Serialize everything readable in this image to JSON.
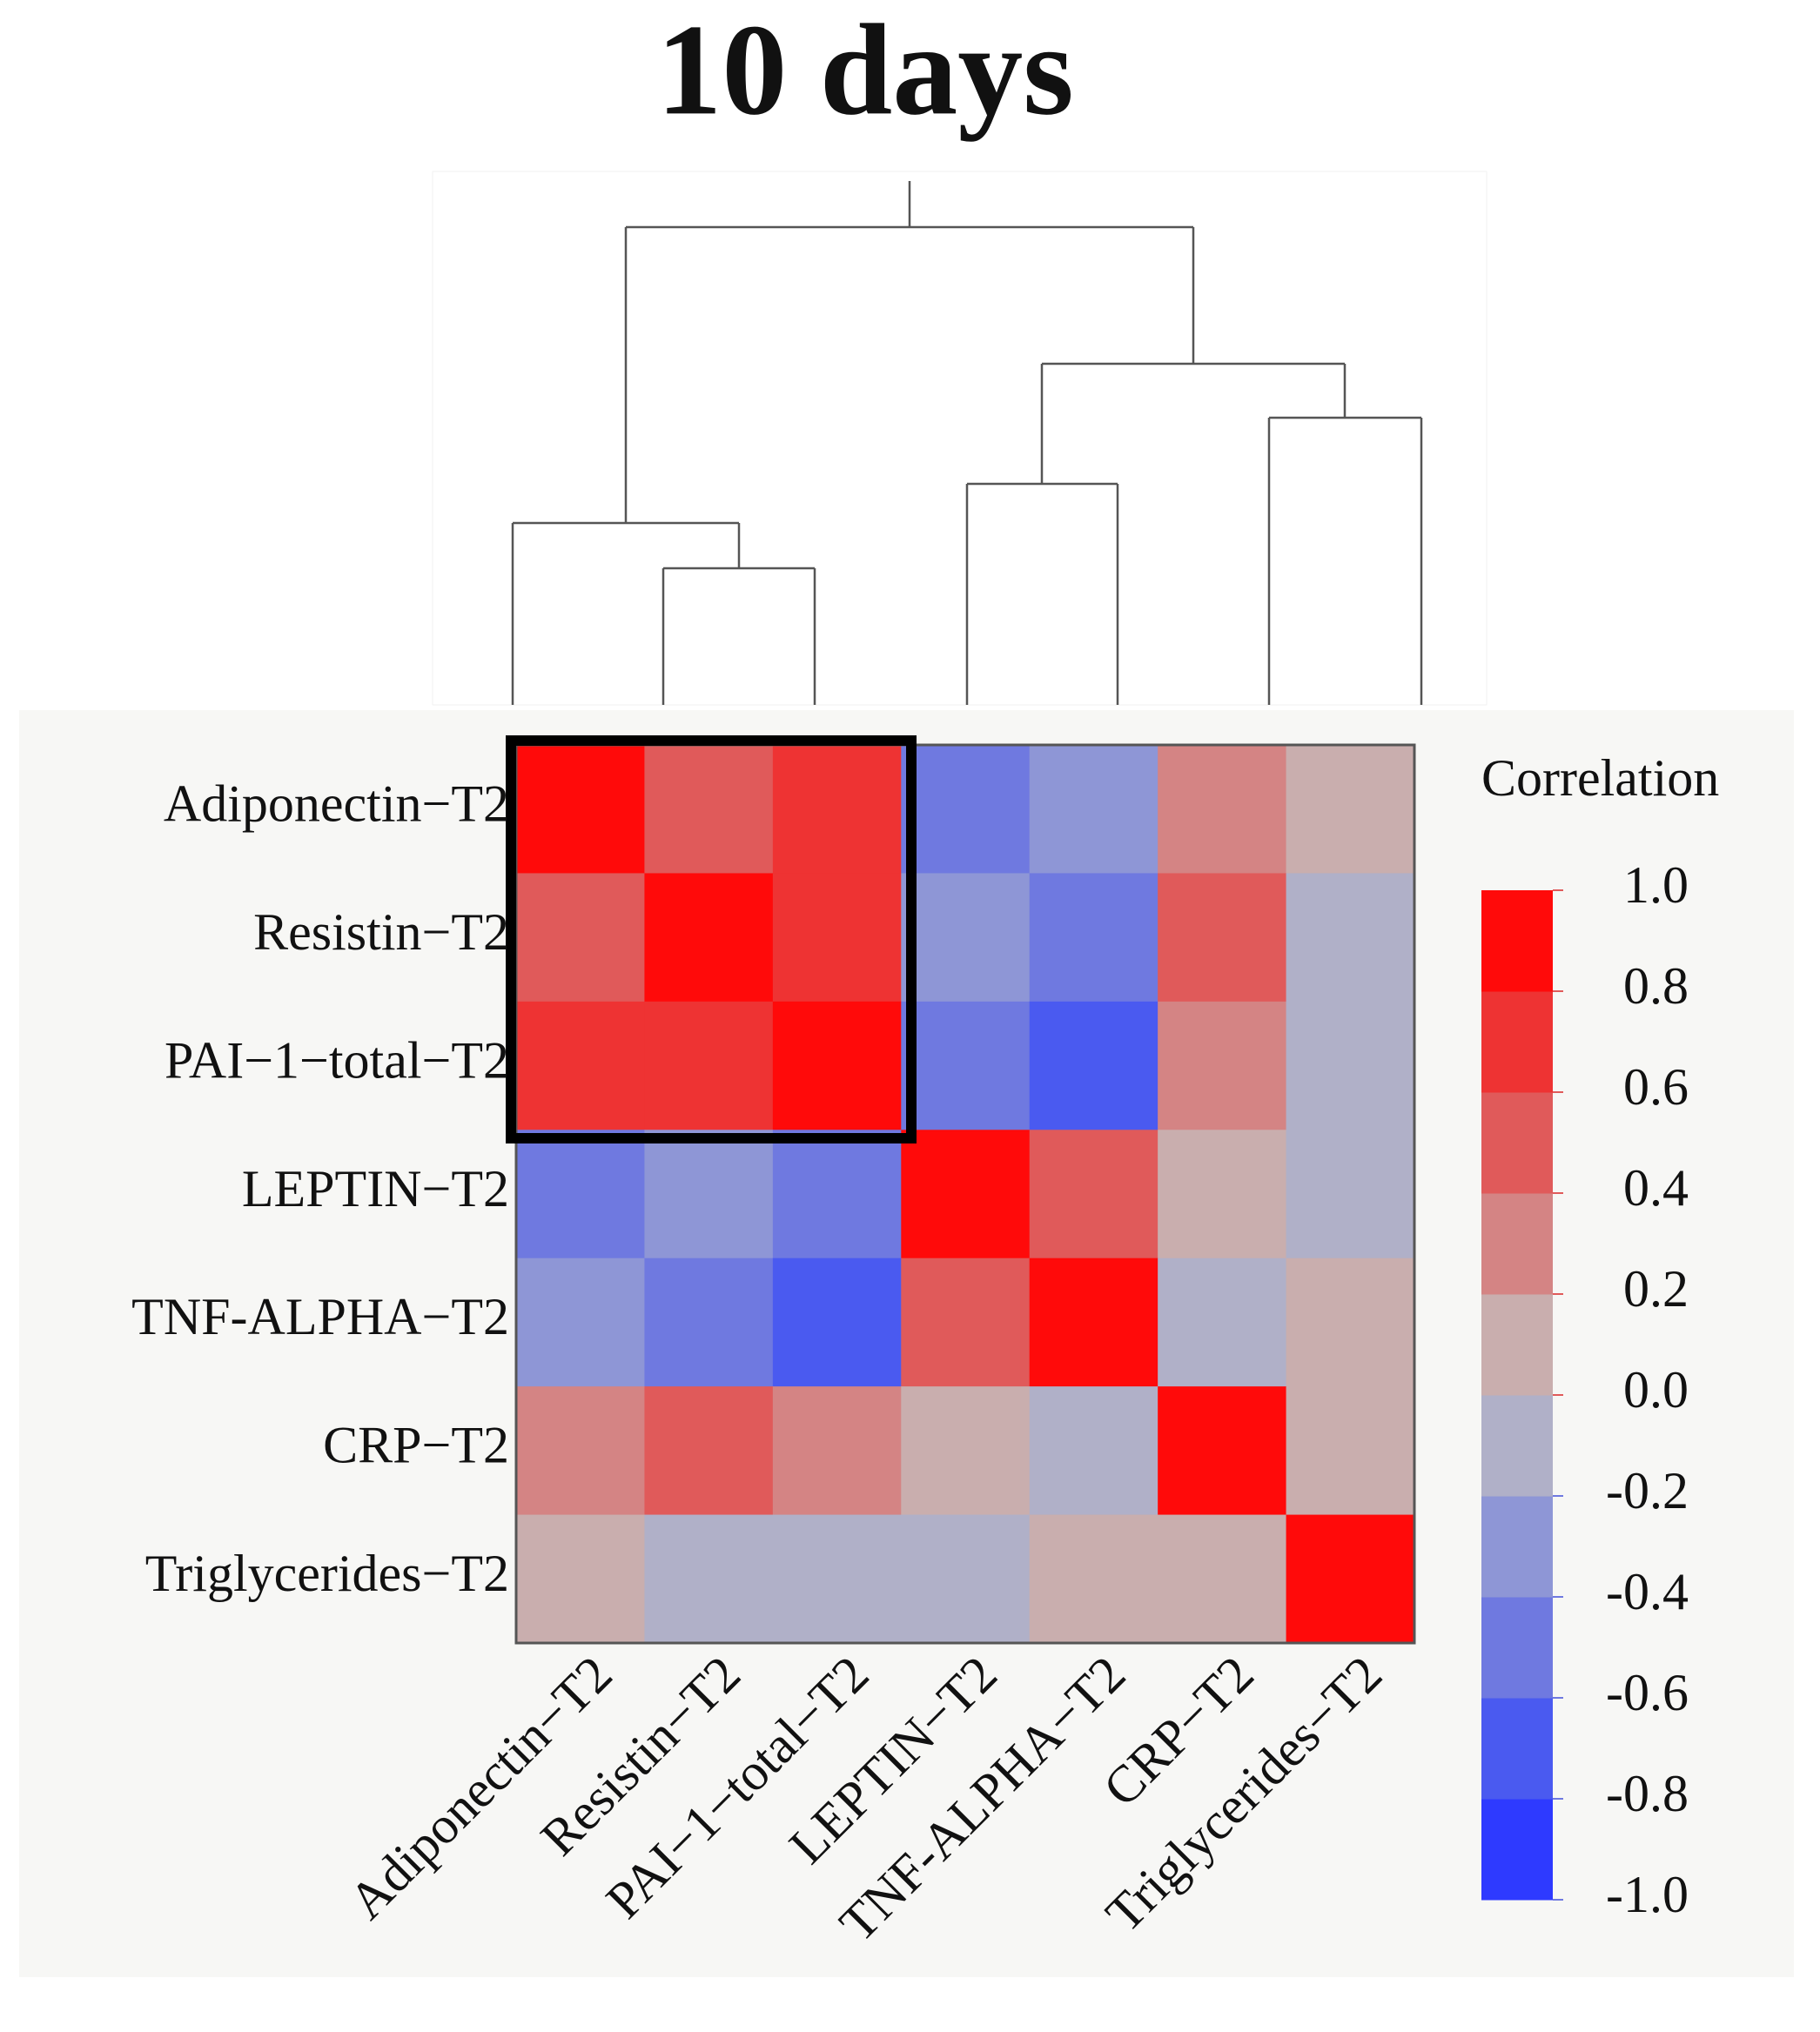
{
  "chart_data": {
    "type": "heatmap",
    "title": "10 days",
    "categories": [
      "Adiponectin−T2",
      "Resistin−T2",
      "PAI−1−total−T2",
      "LEPTIN−T2",
      "TNF-ALPHA−T2",
      "CRP−T2",
      "Triglycerides−T2"
    ],
    "values": [
      [
        1,
        0.5,
        0.7,
        -0.5,
        -0.3,
        0.3,
        0.1
      ],
      [
        0.5,
        1,
        0.7,
        -0.3,
        -0.5,
        0.5,
        -0.1
      ],
      [
        0.7,
        0.7,
        1,
        -0.5,
        -0.7,
        0.3,
        -0.1
      ],
      [
        -0.5,
        -0.3,
        -0.5,
        1,
        0.5,
        0.1,
        -0.1
      ],
      [
        -0.3,
        -0.5,
        -0.7,
        0.5,
        1,
        -0.1,
        0.1
      ],
      [
        0.3,
        0.5,
        0.3,
        0.1,
        -0.1,
        1,
        0.1
      ],
      [
        0.1,
        -0.1,
        -0.1,
        -0.1,
        0.1,
        0.1,
        1
      ]
    ],
    "legend_title": "Correlation",
    "zlim": [
      -1,
      1
    ],
    "colors": [
      "#2e3aff",
      "#4a5af0",
      "#6f79e0",
      "#8e96d6",
      "#b0b0c8",
      "#c9aeae",
      "#d48484",
      "#e05a5a",
      "#ee3333",
      "#ff0a0a"
    ],
    "zticks": [
      {
        "value": 1,
        "label": "1.0"
      },
      0.8,
      0.6,
      0.4,
      0.2,
      {
        "value": 0,
        "label": "0.0"
      },
      -0.2,
      -0.4,
      -0.6,
      -0.8,
      {
        "value": -1,
        "label": "-1.0"
      }
    ]
  }
}
